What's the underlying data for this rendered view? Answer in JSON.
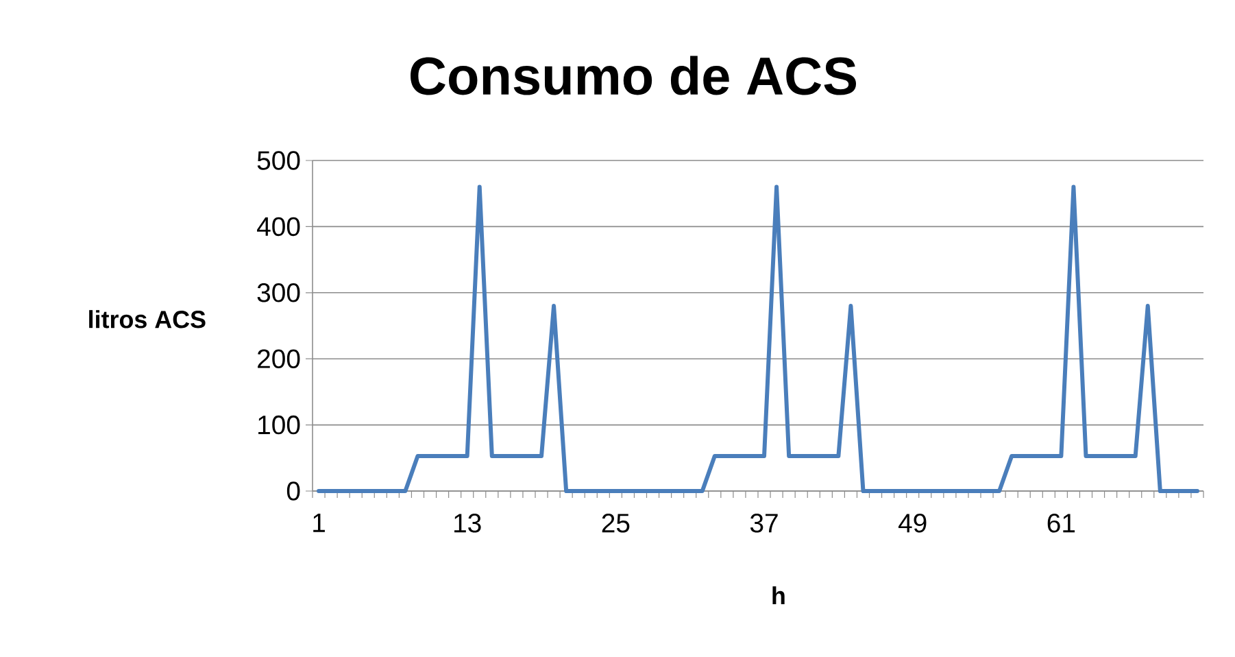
{
  "chart_data": {
    "type": "line",
    "title": "Consumo de ACS",
    "xlabel": "h",
    "ylabel": "litros ACS",
    "categories": [
      "1",
      null,
      null,
      null,
      null,
      null,
      null,
      null,
      null,
      null,
      null,
      null,
      "13",
      null,
      null,
      null,
      null,
      null,
      null,
      null,
      null,
      null,
      null,
      null,
      "25",
      null,
      null,
      null,
      null,
      null,
      null,
      null,
      null,
      null,
      null,
      null,
      "37",
      null,
      null,
      null,
      null,
      null,
      null,
      null,
      null,
      null,
      null,
      null,
      "49",
      null,
      null,
      null,
      null,
      null,
      null,
      null,
      null,
      null,
      null,
      null,
      "61",
      null,
      null,
      null,
      null,
      null,
      null,
      null,
      null,
      null,
      null,
      null
    ],
    "series": [
      {
        "color": "#4a7ebb",
        "values": [
          0,
          0,
          0,
          0,
          0,
          0,
          0,
          0,
          53,
          53,
          53,
          53,
          53,
          460,
          53,
          53,
          53,
          53,
          53,
          280,
          0,
          0,
          0,
          0,
          0,
          0,
          0,
          0,
          0,
          0,
          0,
          0,
          53,
          53,
          53,
          53,
          53,
          460,
          53,
          53,
          53,
          53,
          53,
          280,
          0,
          0,
          0,
          0,
          0,
          0,
          0,
          0,
          0,
          0,
          0,
          0,
          53,
          53,
          53,
          53,
          53,
          460,
          53,
          53,
          53,
          53,
          53,
          280,
          0,
          0,
          0,
          0
        ]
      }
    ],
    "ylim": [
      0,
      500
    ],
    "yticks": [
      0,
      100,
      200,
      300,
      400,
      500
    ],
    "grid": "y",
    "legend": false,
    "marker": "none",
    "line_style": "solid"
  }
}
